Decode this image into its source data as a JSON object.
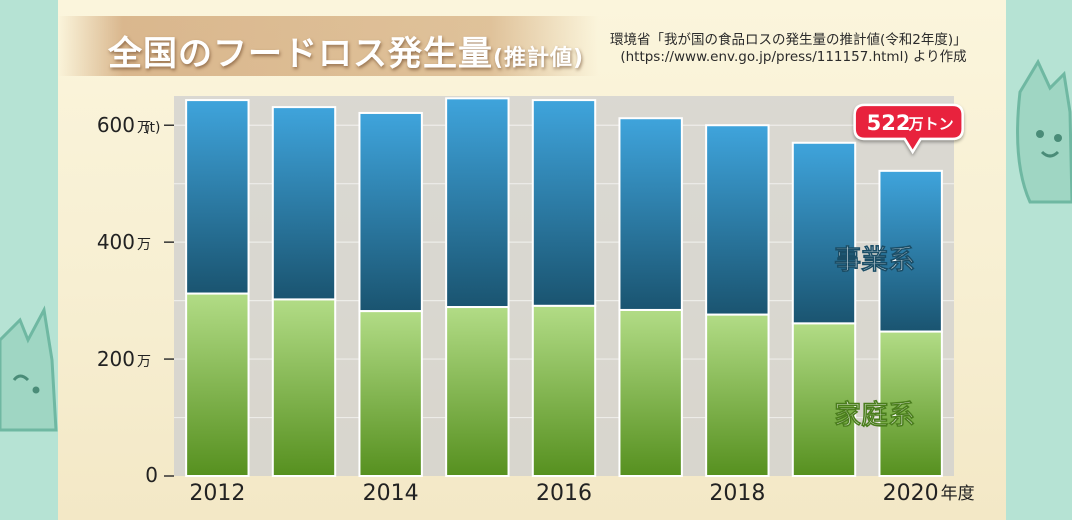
{
  "header": {
    "title_main": "全国のフードロス発生量",
    "title_sub": "(推計値)",
    "source_line1": "環境省「我が国の食品ロスの発生量の推計値(令和2年度)」",
    "source_line2": "(https://www.env.go.jp/press/111157.html) より作成"
  },
  "colors": {
    "business": "#2e86b8",
    "household": "#74ad3d",
    "callout": "#e8213e",
    "background": "#b6e3d4"
  },
  "chart_data": {
    "type": "bar",
    "stacked": true,
    "categories": [
      "2012",
      "2013",
      "2014",
      "2015",
      "2016",
      "2017",
      "2018",
      "2019",
      "2020"
    ],
    "x_tick_labels": [
      "2012",
      "",
      "2014",
      "",
      "2016",
      "",
      "2018",
      "",
      "2020"
    ],
    "x_unit": "年度",
    "y_unit": "(t)",
    "ylim": [
      0,
      6500000
    ],
    "y_ticks": [
      {
        "value": 0,
        "label": "0",
        "unit": ""
      },
      {
        "value": 2000000,
        "label": "200",
        "unit": "万"
      },
      {
        "value": 4000000,
        "label": "400",
        "unit": "万"
      },
      {
        "value": 6000000,
        "label": "600",
        "unit": "万"
      }
    ],
    "series": [
      {
        "name": "家庭系",
        "values": [
          3120000,
          3020000,
          2820000,
          2890000,
          2910000,
          2840000,
          2760000,
          2610000,
          2470000
        ]
      },
      {
        "name": "事業系",
        "values": [
          3310000,
          3290000,
          3390000,
          3570000,
          3520000,
          3280000,
          3240000,
          3090000,
          2750000
        ]
      }
    ],
    "series_labels": [
      "家庭系",
      "事業系"
    ],
    "annotation": {
      "index": 8,
      "value": "522",
      "unit": "万トン"
    },
    "grid": true
  }
}
